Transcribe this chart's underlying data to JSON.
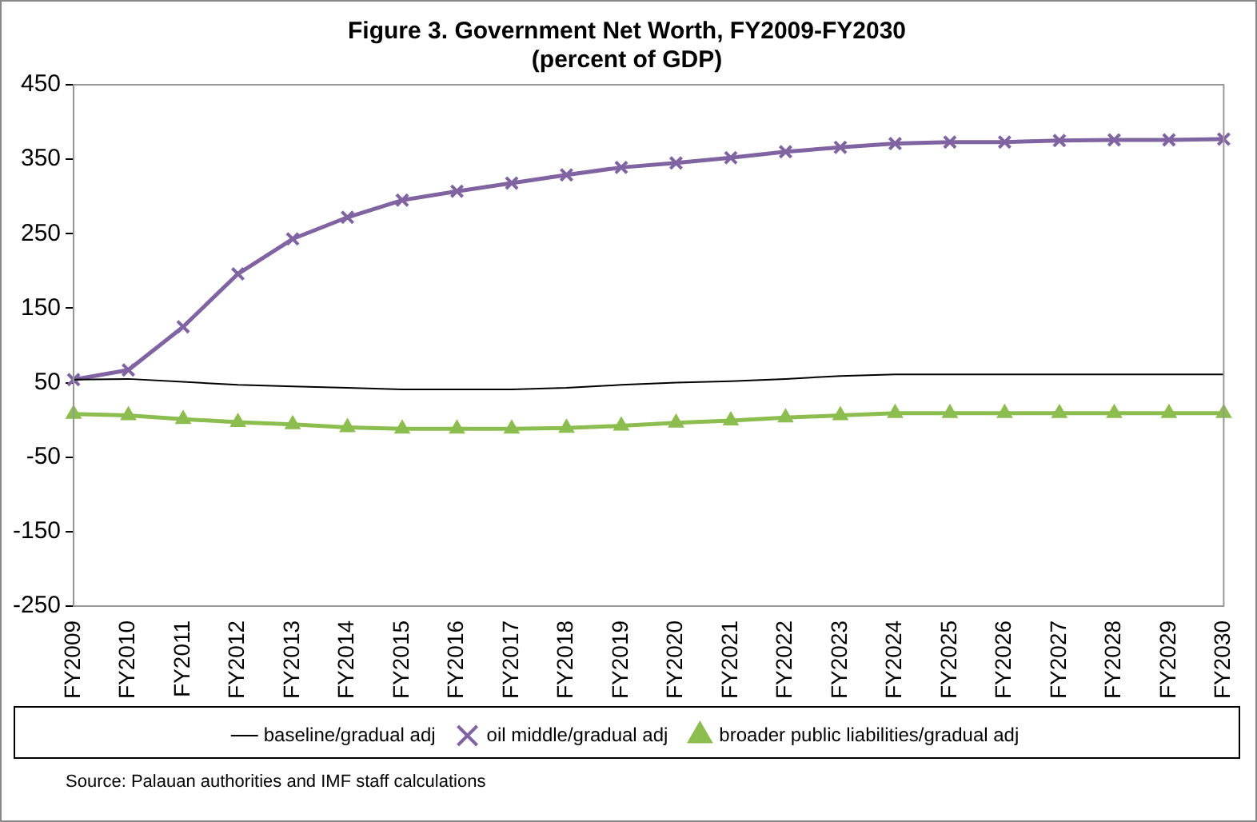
{
  "chart_data": {
    "type": "line",
    "title": "Figure 3. Government Net Worth, FY2009-FY2030",
    "subtitle": "(percent of GDP)",
    "categories": [
      "FY2009",
      "FY2010",
      "FY2011",
      "FY2012",
      "FY2013",
      "FY2014",
      "FY2015",
      "FY2016",
      "FY2017",
      "FY2018",
      "FY2019",
      "FY2020",
      "FY2021",
      "FY2022",
      "FY2023",
      "FY2024",
      "FY2025",
      "FY2026",
      "FY2027",
      "FY2028",
      "FY2029",
      "FY2030"
    ],
    "series": [
      {
        "name": "baseline/gradual adj",
        "color": "#000000",
        "marker": "none",
        "values": [
          54,
          55,
          51,
          47,
          45,
          43,
          41,
          41,
          41,
          43,
          47,
          50,
          52,
          55,
          59,
          61,
          61,
          61,
          61,
          61,
          61,
          61
        ]
      },
      {
        "name": "oil middle/gradual adj",
        "color": "#8064a2",
        "marker": "cross",
        "values": [
          54,
          67,
          125,
          196,
          243,
          272,
          295,
          307,
          318,
          329,
          339,
          345,
          352,
          360,
          366,
          371,
          373,
          373,
          375,
          376,
          376,
          377
        ]
      },
      {
        "name": "broader public liabilities/gradual adj",
        "color": "#8cbd4f",
        "marker": "triangle",
        "values": [
          8,
          6,
          1,
          -3,
          -6,
          -10,
          -12,
          -12,
          -12,
          -11,
          -8,
          -4,
          -1,
          3,
          6,
          9,
          9,
          9,
          9,
          9,
          9,
          9
        ]
      }
    ],
    "ylim": [
      -250,
      450
    ],
    "yticks": [
      -250,
      -150,
      -50,
      50,
      150,
      250,
      350,
      450
    ],
    "grid": false,
    "legend": "bottom",
    "annotations": [
      "Source:  Palauan authorities and IMF staff calculations"
    ]
  }
}
